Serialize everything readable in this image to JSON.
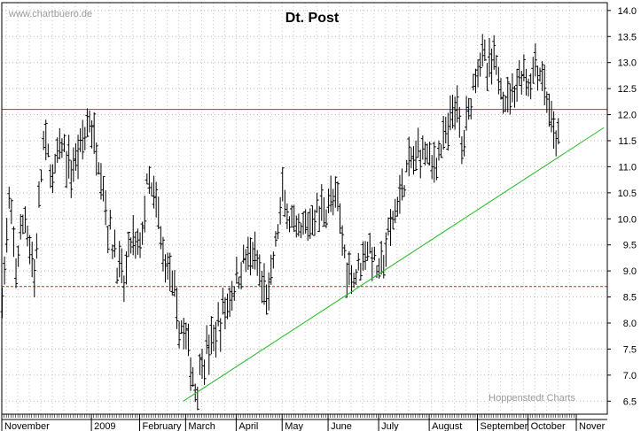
{
  "chart_data": {
    "type": "ohlc-bar",
    "title": "Dt. Post",
    "source_label": "www.chartbuero.de",
    "credit_label": "Hoppenstedt Charts",
    "y_axis": {
      "position": "right",
      "min": 6.25,
      "max": 14.15,
      "grid": true,
      "ticks": [
        6.5,
        7.0,
        7.5,
        8.0,
        8.5,
        9.0,
        9.5,
        10.0,
        10.5,
        11.0,
        11.5,
        12.0,
        12.5,
        13.0,
        13.5,
        14.0
      ],
      "tick_labels": [
        "6.5",
        "7.0",
        "7.5",
        "8.0",
        "8.5",
        "9.0",
        "9.5",
        "10.0",
        "10.5",
        "11.0",
        "11.5",
        "12.0",
        "12.5",
        "13.0",
        "13.5",
        "14.0"
      ]
    },
    "x_axis": {
      "n_days": 250,
      "grid": true,
      "months": [
        {
          "label": "November",
          "day": 0
        },
        {
          "label": "2009",
          "day": 39
        },
        {
          "label": "February",
          "day": 60
        },
        {
          "label": "March",
          "day": 80
        },
        {
          "label": "April",
          "day": 102
        },
        {
          "label": "May",
          "day": 122
        },
        {
          "label": "June",
          "day": 142
        },
        {
          "label": "July",
          "day": 164
        },
        {
          "label": "August",
          "day": 186
        },
        {
          "label": "September",
          "day": 207
        },
        {
          "label": "October",
          "day": 229
        },
        {
          "label": "Nover",
          "day": 250
        }
      ]
    },
    "reference_lines": [
      {
        "name": "resistance",
        "style": "solid",
        "color": "#dd2222",
        "value": 12.1
      },
      {
        "name": "support",
        "style": "dashed",
        "color": "#dd2222",
        "value": 8.7
      }
    ],
    "trend_line": {
      "color": "#22bb22",
      "from": {
        "day": 79,
        "value": 6.5
      },
      "to": {
        "day": 262,
        "value": 11.75
      }
    },
    "price_path": [
      [
        0,
        8.5
      ],
      [
        3,
        10.2
      ],
      [
        6,
        9.1
      ],
      [
        10,
        10.1
      ],
      [
        14,
        8.9
      ],
      [
        18,
        11.5
      ],
      [
        22,
        10.8
      ],
      [
        26,
        11.4
      ],
      [
        30,
        10.9
      ],
      [
        34,
        11.4
      ],
      [
        38,
        11.9
      ],
      [
        40,
        11.5
      ],
      [
        43,
        11.0
      ],
      [
        46,
        9.9
      ],
      [
        50,
        9.2
      ],
      [
        53,
        8.7
      ],
      [
        56,
        9.6
      ],
      [
        60,
        9.4
      ],
      [
        63,
        10.6
      ],
      [
        66,
        10.4
      ],
      [
        68,
        10.0
      ],
      [
        70,
        9.3
      ],
      [
        73,
        9.0
      ],
      [
        76,
        8.1
      ],
      [
        78,
        7.9
      ],
      [
        80,
        7.7
      ],
      [
        82,
        7.2
      ],
      [
        84,
        6.7
      ],
      [
        87,
        7.3
      ],
      [
        90,
        7.5
      ],
      [
        94,
        7.9
      ],
      [
        98,
        8.4
      ],
      [
        102,
        8.8
      ],
      [
        106,
        9.3
      ],
      [
        110,
        9.2
      ],
      [
        113,
        8.7
      ],
      [
        116,
        8.5
      ],
      [
        119,
        9.5
      ],
      [
        122,
        10.4
      ],
      [
        125,
        10.0
      ],
      [
        128,
        9.6
      ],
      [
        132,
        9.8
      ],
      [
        136,
        10.1
      ],
      [
        140,
        10.2
      ],
      [
        143,
        10.4
      ],
      [
        146,
        10.2
      ],
      [
        150,
        9.1
      ],
      [
        153,
        8.9
      ],
      [
        156,
        9.2
      ],
      [
        158,
        9.5
      ],
      [
        161,
        9.3
      ],
      [
        164,
        8.9
      ],
      [
        168,
        9.6
      ],
      [
        172,
        10.3
      ],
      [
        176,
        10.9
      ],
      [
        180,
        11.2
      ],
      [
        184,
        11.4
      ],
      [
        187,
        11.0
      ],
      [
        190,
        11.3
      ],
      [
        194,
        11.6
      ],
      [
        197,
        12.3
      ],
      [
        200,
        11.4
      ],
      [
        203,
        12.1
      ],
      [
        206,
        12.9
      ],
      [
        208,
        13.2
      ],
      [
        211,
        12.8
      ],
      [
        214,
        13.0
      ],
      [
        217,
        12.6
      ],
      [
        220,
        12.3
      ],
      [
        223,
        12.6
      ],
      [
        226,
        12.8
      ],
      [
        230,
        12.6
      ],
      [
        232,
        13.0
      ],
      [
        235,
        12.7
      ],
      [
        238,
        12.1
      ],
      [
        240,
        11.5
      ],
      [
        242,
        11.6
      ]
    ]
  }
}
